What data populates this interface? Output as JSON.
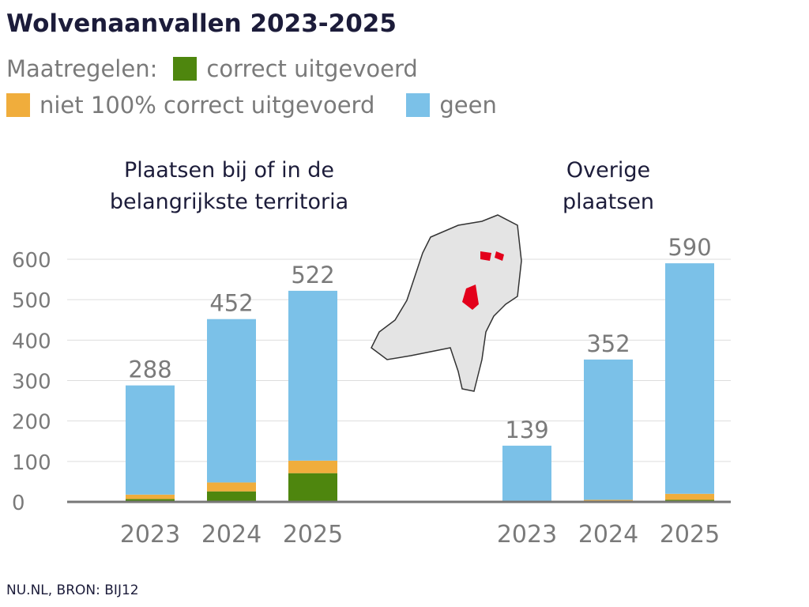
{
  "title": "Wolvenaanvallen 2023-2025",
  "legend": {
    "label": "Maatregelen:",
    "items": [
      {
        "name": "correct uitgevoerd",
        "color": "#4e860e"
      },
      {
        "name": "niet 100% correct uitgevoerd",
        "color": "#f0ad3c"
      },
      {
        "name": "geen",
        "color": "#7bc1e8"
      }
    ]
  },
  "source": "NU.NL, BRON: BIJ12",
  "chart_data": [
    {
      "type": "bar",
      "stacked": true,
      "title": "Plaatsen bij of in de belangrijkste territoria",
      "categories": [
        "2023",
        "2024",
        "2025"
      ],
      "ylim": [
        0,
        600
      ],
      "yticks": [
        0,
        100,
        200,
        300,
        400,
        500,
        600
      ],
      "grid": true,
      "totals": [
        "288",
        "452",
        "522"
      ],
      "series": [
        {
          "name": "correct uitgevoerd",
          "values": [
            7,
            26,
            71
          ]
        },
        {
          "name": "niet 100% correct uitgevoerd",
          "values": [
            11,
            22,
            31
          ]
        },
        {
          "name": "geen",
          "values": [
            270,
            404,
            420
          ]
        }
      ]
    },
    {
      "type": "bar",
      "stacked": true,
      "title": "Overige plaatsen",
      "categories": [
        "2023",
        "2024",
        "2025"
      ],
      "ylim": [
        0,
        600
      ],
      "grid": true,
      "totals": [
        "139",
        "352",
        "590"
      ],
      "series": [
        {
          "name": "correct uitgevoerd",
          "values": [
            0,
            1,
            5
          ]
        },
        {
          "name": "niet 100% correct uitgevoerd",
          "values": [
            3,
            4,
            15
          ]
        },
        {
          "name": "geen",
          "values": [
            136,
            347,
            570
          ]
        }
      ]
    }
  ]
}
